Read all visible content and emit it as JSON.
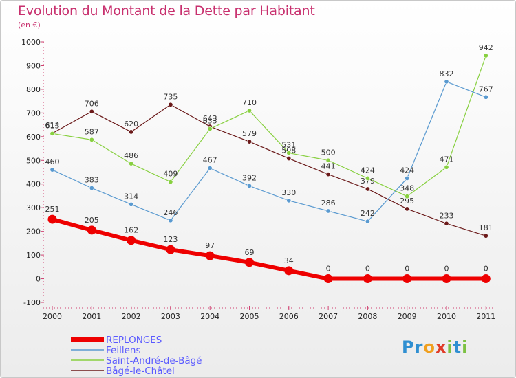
{
  "title": "Evolution du Montant de la Dette par Habitant",
  "subtitle": "(en €)",
  "logo": {
    "text": "Proxiti",
    "letters": [
      {
        "ch": "P",
        "color": "#2f8fd1"
      },
      {
        "ch": "r",
        "color": "#2f8fd1"
      },
      {
        "ch": "o",
        "color": "#f0a020"
      },
      {
        "ch": "x",
        "color": "#e03c28"
      },
      {
        "ch": "i",
        "color": "#7cc142"
      },
      {
        "ch": "t",
        "color": "#2f8fd1"
      },
      {
        "ch": "i",
        "color": "#7cc142"
      }
    ]
  },
  "chart_data": {
    "type": "line",
    "title": "Evolution du Montant de la Dette par Habitant",
    "subtitle": "(en €)",
    "x": [
      "2000",
      "2001",
      "2002",
      "2003",
      "2004",
      "2005",
      "2006",
      "2007",
      "2008",
      "2009",
      "2010",
      "2011"
    ],
    "ylim": [
      -100,
      1000
    ],
    "yticks": [
      -100,
      0,
      100,
      200,
      300,
      400,
      500,
      600,
      700,
      800,
      900,
      1000
    ],
    "grid": false,
    "legend_position": "bottom-left",
    "series": [
      {
        "name": "Bâgé-le-Châtel",
        "color": "#6b1a1a",
        "width": 1.2,
        "values": [
          614,
          706,
          620,
          735,
          643,
          579,
          508,
          441,
          379,
          295,
          233,
          181
        ]
      },
      {
        "name": "Saint-André-de-Bâgé",
        "color": "#88d040",
        "width": 1.2,
        "values": [
          613,
          587,
          486,
          409,
          633,
          710,
          531,
          500,
          424,
          348,
          471,
          942
        ]
      },
      {
        "name": "Feillens",
        "color": "#5a9ad0",
        "width": 1.2,
        "values": [
          460,
          383,
          314,
          246,
          467,
          392,
          330,
          286,
          242,
          424,
          832,
          767
        ]
      },
      {
        "name": "REPLONGES",
        "color": "#ee0000",
        "width": 6,
        "values": [
          251,
          205,
          162,
          123,
          97,
          69,
          34,
          0,
          0,
          0,
          0,
          0
        ]
      }
    ],
    "legend": [
      "REPLONGES",
      "Feillens",
      "Saint-André-de-Bâgé",
      "Bâgé-le-Châtel"
    ]
  }
}
